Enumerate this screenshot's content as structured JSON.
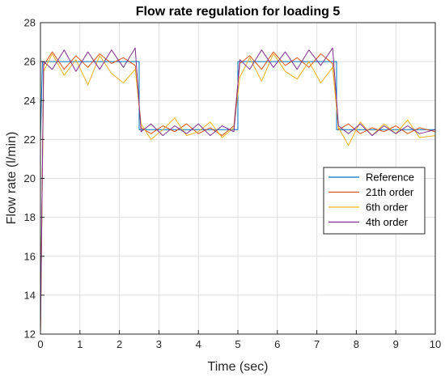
{
  "chart_data": {
    "type": "line",
    "title": "Flow rate regulation for loading 5",
    "xlabel": "Time (sec)",
    "ylabel": "Flow rate (l/min)",
    "xlim": [
      0,
      10
    ],
    "ylim": [
      12,
      28
    ],
    "x_ticks": [
      0,
      1,
      2,
      3,
      4,
      5,
      6,
      7,
      8,
      9,
      10
    ],
    "y_ticks": [
      12,
      14,
      16,
      18,
      20,
      22,
      24,
      26,
      28
    ],
    "grid": true,
    "legend_position": "right",
    "series": [
      {
        "name": "Reference",
        "color": "#0072BD",
        "x": [
          0,
          0.05,
          2.5,
          2.5,
          5.0,
          5.0,
          7.5,
          7.5,
          10.0
        ],
        "y": [
          22,
          26,
          26,
          22.5,
          22.5,
          26,
          26,
          22.5,
          22.5
        ]
      },
      {
        "name": "21th order",
        "color": "#D95319",
        "x": [
          0,
          0.08,
          0.3,
          0.6,
          0.9,
          1.2,
          1.5,
          1.8,
          2.1,
          2.4,
          2.55,
          2.8,
          3.1,
          3.4,
          3.7,
          4.0,
          4.3,
          4.6,
          4.9,
          5.05,
          5.3,
          5.6,
          5.9,
          6.2,
          6.5,
          6.8,
          7.1,
          7.4,
          7.55,
          7.8,
          8.1,
          8.4,
          8.7,
          9.0,
          9.3,
          9.6,
          10.0
        ],
        "y": [
          12,
          25.8,
          26.5,
          25.6,
          26.3,
          25.7,
          26.4,
          25.9,
          26.2,
          25.8,
          22.6,
          22.3,
          22.7,
          22.4,
          22.8,
          22.3,
          22.6,
          22.2,
          22.7,
          25.9,
          26.3,
          25.6,
          26.5,
          25.8,
          26.2,
          25.7,
          26.4,
          25.9,
          22.5,
          22.8,
          22.3,
          22.6,
          22.4,
          22.7,
          22.3,
          22.6,
          22.4
        ]
      },
      {
        "name": "6th order",
        "color": "#EDB120",
        "x": [
          0,
          0.08,
          0.3,
          0.6,
          0.9,
          1.2,
          1.5,
          1.8,
          2.1,
          2.4,
          2.55,
          2.8,
          3.1,
          3.4,
          3.7,
          4.0,
          4.3,
          4.6,
          4.9,
          5.05,
          5.3,
          5.6,
          5.9,
          6.2,
          6.5,
          6.8,
          7.1,
          7.4,
          7.55,
          7.8,
          8.1,
          8.4,
          8.7,
          9.0,
          9.3,
          9.6,
          10.0
        ],
        "y": [
          12,
          25.5,
          26.4,
          25.3,
          26.1,
          24.8,
          26.3,
          25.4,
          24.9,
          25.6,
          22.8,
          22.0,
          22.5,
          23.1,
          22.2,
          22.4,
          22.9,
          22.1,
          22.6,
          25.2,
          26.2,
          25.0,
          26.4,
          25.5,
          25.1,
          26.0,
          24.9,
          25.7,
          22.6,
          21.7,
          22.9,
          22.2,
          22.8,
          22.3,
          23.0,
          22.1,
          22.2
        ]
      },
      {
        "name": "4th order",
        "color": "#7E2F8E",
        "x": [
          0,
          0.08,
          0.3,
          0.6,
          0.9,
          1.2,
          1.5,
          1.8,
          2.1,
          2.4,
          2.55,
          2.8,
          3.1,
          3.4,
          3.7,
          4.0,
          4.3,
          4.6,
          4.9,
          5.05,
          5.3,
          5.6,
          5.9,
          6.2,
          6.5,
          6.8,
          7.1,
          7.4,
          7.55,
          7.8,
          8.1,
          8.4,
          8.7,
          9.0,
          9.3,
          9.6,
          10.0
        ],
        "y": [
          12,
          26.0,
          25.6,
          26.6,
          25.5,
          26.5,
          25.6,
          26.6,
          25.7,
          26.7,
          22.4,
          22.8,
          22.2,
          22.7,
          22.3,
          22.8,
          22.2,
          22.7,
          22.4,
          26.1,
          25.6,
          26.6,
          25.7,
          26.5,
          25.6,
          26.6,
          25.8,
          26.7,
          22.7,
          22.3,
          22.8,
          22.2,
          22.7,
          22.3,
          22.7,
          22.3,
          22.5
        ]
      }
    ]
  }
}
